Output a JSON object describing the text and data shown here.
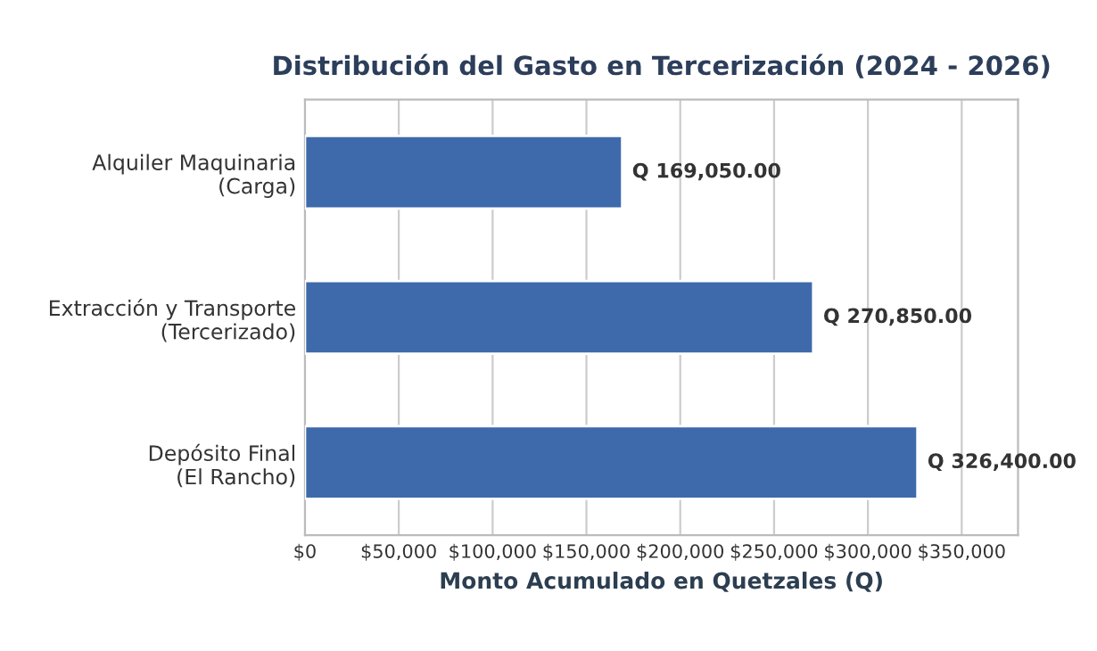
{
  "chart_data": {
    "type": "bar",
    "orientation": "horizontal",
    "title": "Distribución del Gasto en Tercerización (2024 - 2026)",
    "xlabel": "Monto Acumulado en Quetzales (Q)",
    "categories": [
      "Alquiler Maquinaria\n(Carga)",
      "Extracción y Transporte\n(Tercerizado)",
      "Depósito Final\n(El Rancho)"
    ],
    "values": [
      169050,
      270850,
      326400
    ],
    "color": "#3e6aab",
    "value_labels": [
      "Q 169,050.00",
      "Q 270,850.00",
      "Q 326,400.00"
    ],
    "xlim": [
      0,
      380000
    ],
    "xticks": [
      {
        "value": 0,
        "label": "$0"
      },
      {
        "value": 50000,
        "label": "$50,000"
      },
      {
        "value": 100000,
        "label": "$100,000"
      },
      {
        "value": 150000,
        "label": "$150,000"
      },
      {
        "value": 200000,
        "label": "$200,000"
      },
      {
        "value": 250000,
        "label": "$250,000"
      },
      {
        "value": 300000,
        "label": "$300,000"
      },
      {
        "value": 350000,
        "label": "$350,000"
      }
    ],
    "grid": "x",
    "legend": false
  }
}
